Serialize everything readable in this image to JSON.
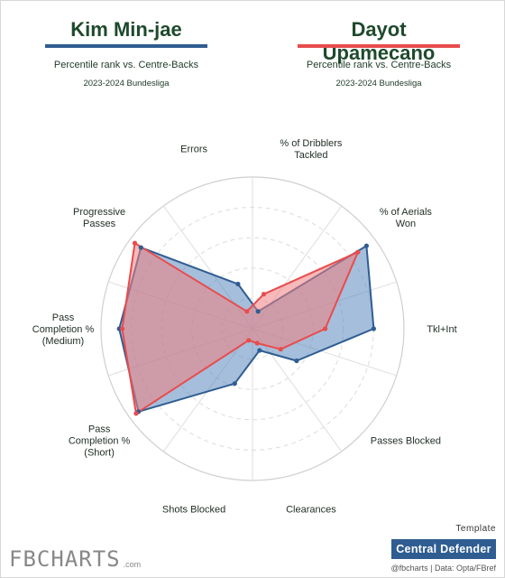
{
  "header": {
    "left_player": "Kim Min-jae",
    "right_player": "Dayot Upamecano",
    "left_subtitle": "Percentile rank vs. Centre-Backs",
    "right_subtitle": "Percentile rank vs. Centre-Backs",
    "left_season": "2023-2024 Bundesliga",
    "right_season": "2023-2024 Bundesliga"
  },
  "colors": {
    "left": "#2f5d92",
    "right": "#e84c4c",
    "left_fill": "#5b88bd",
    "right_fill": "#f08080"
  },
  "chart_data": {
    "type": "radar",
    "axes": [
      "Errors",
      "% of Dribblers Tackled",
      "% of Aerials Won",
      "Tkl+Int",
      "Passes Blocked",
      "Clearances",
      "Shots Blocked",
      "Pass Completion % (Short)",
      "Pass Completion % (Medium)",
      "Progressive Passes"
    ],
    "rlim": [
      0,
      100
    ],
    "grid_rings": [
      20,
      40,
      60,
      80,
      100
    ],
    "series": [
      {
        "name": "Kim Min-jae",
        "values": [
          31,
          12,
          93,
          80,
          36,
          15,
          38,
          93,
          88,
          91
        ]
      },
      {
        "name": "Dayot Upamecano",
        "values": [
          12,
          24,
          86,
          48,
          23,
          10,
          8,
          95,
          86,
          96
        ]
      }
    ]
  },
  "footer": {
    "template_label": "Template",
    "role": "Central Defender",
    "source": "@fbcharts | Data: Opta/FBref",
    "brand": "FBCHARTS",
    "brand_domain": ".com"
  }
}
